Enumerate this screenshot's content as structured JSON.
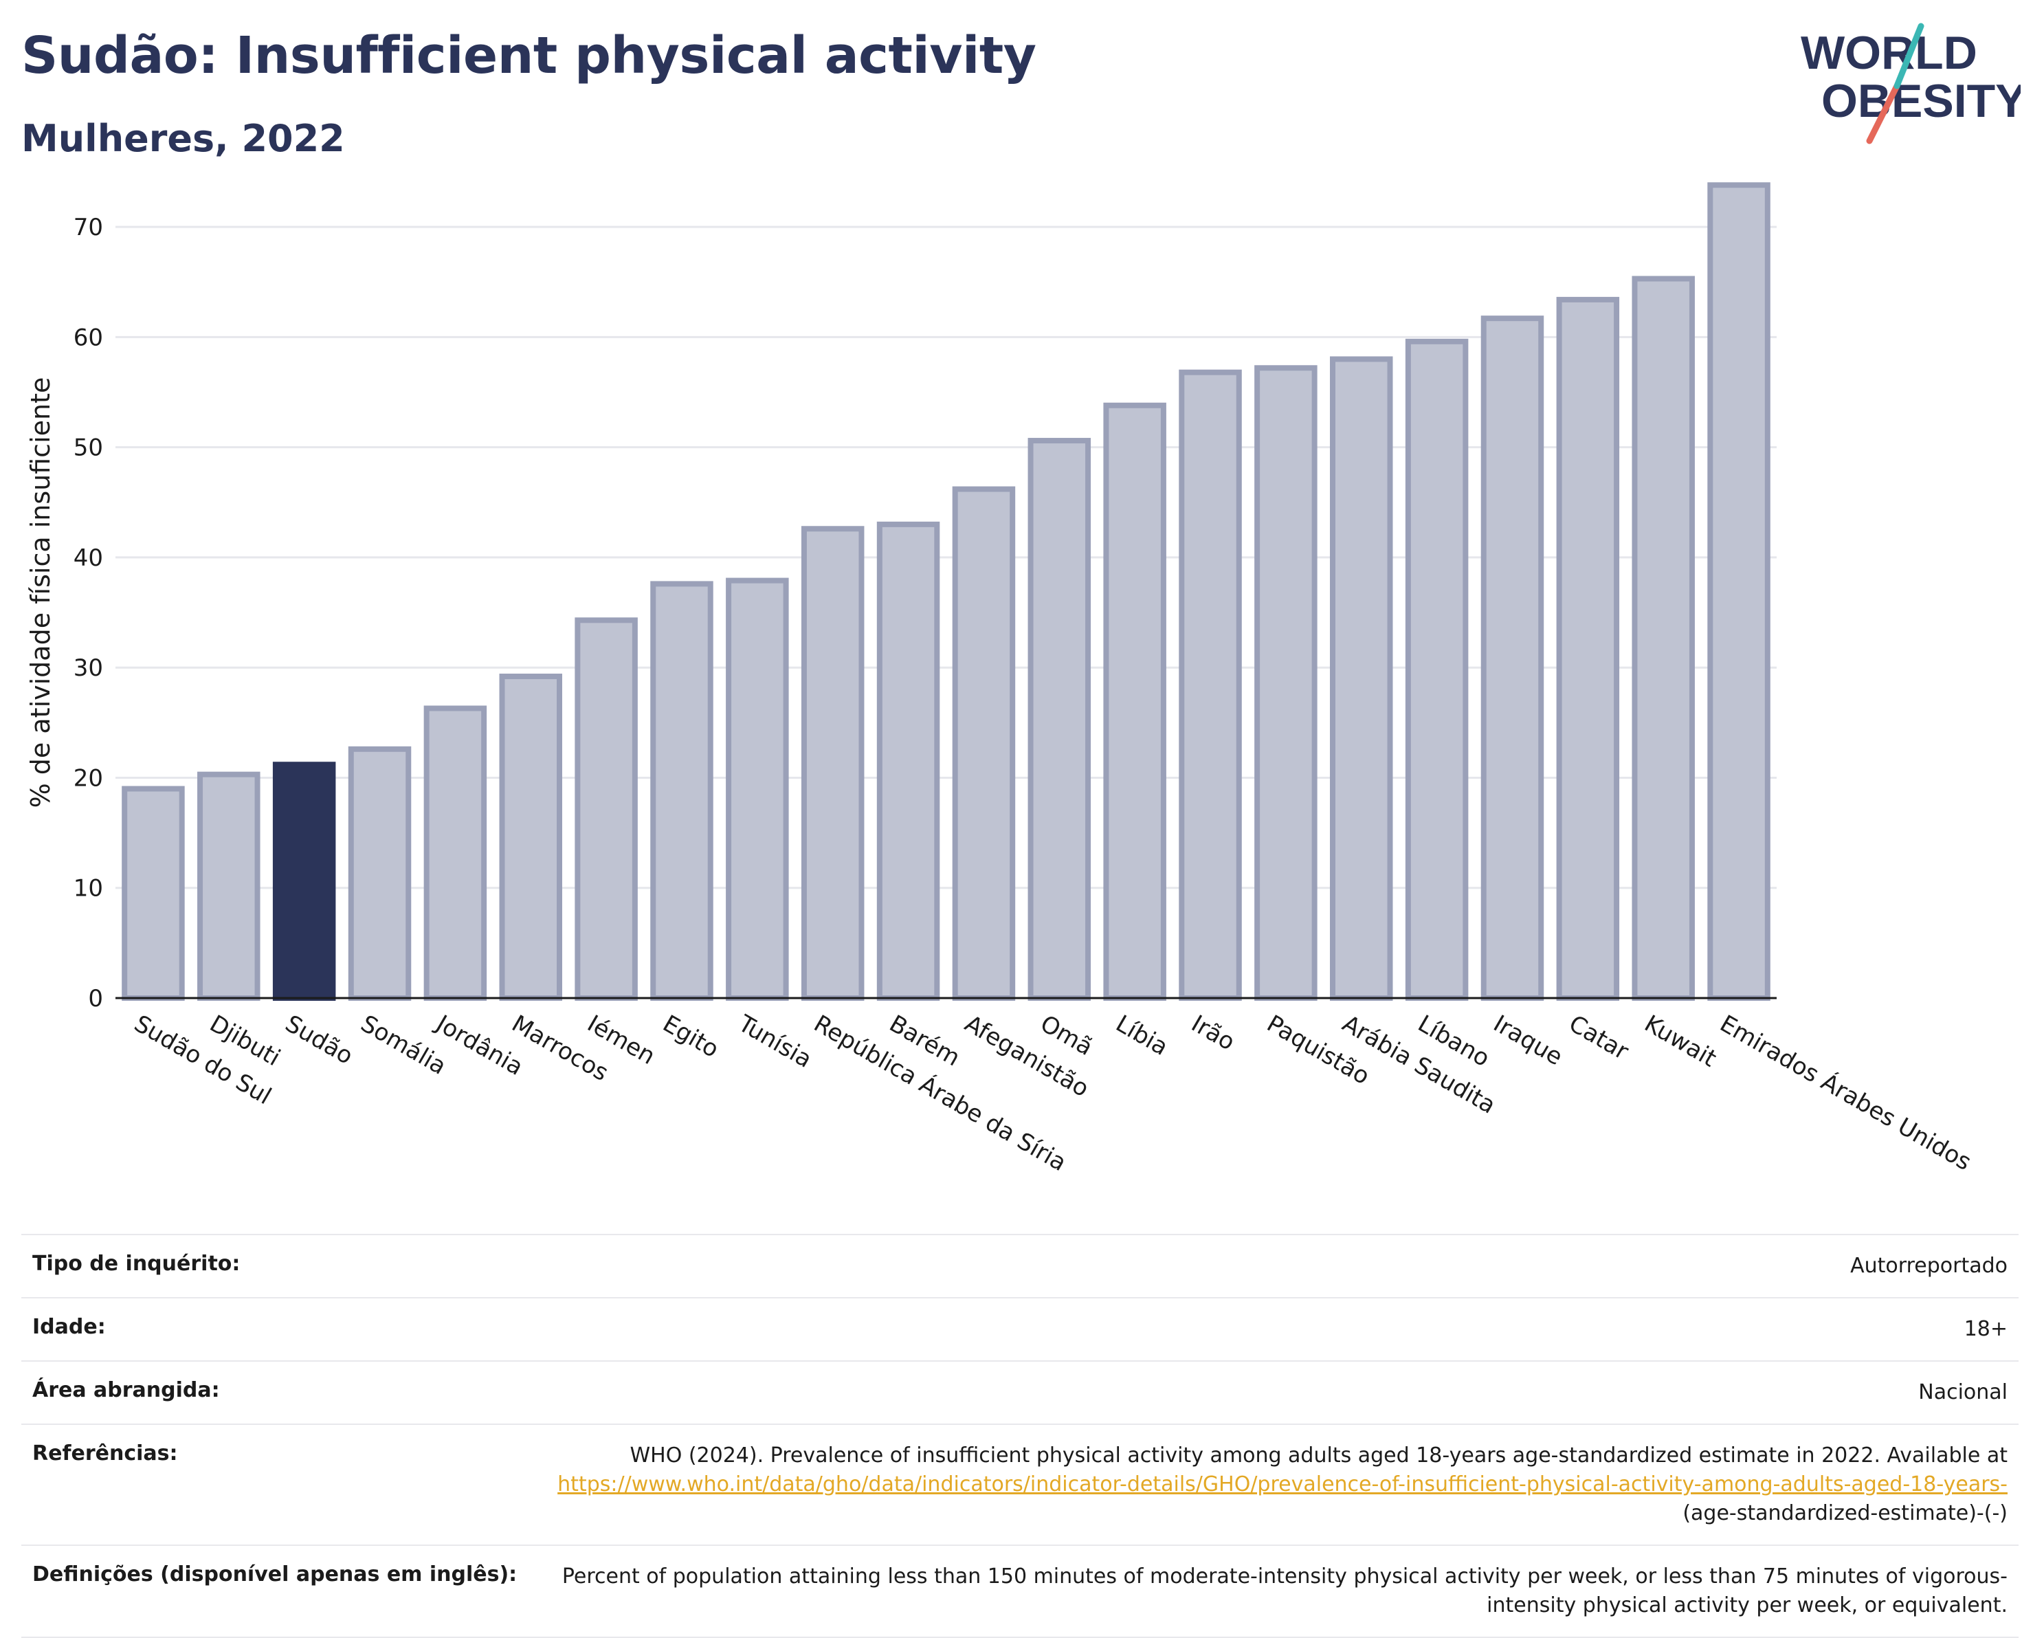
{
  "header": {
    "title": "Sudão: Insufficient physical activity",
    "subtitle": "Mulheres, 2022"
  },
  "logo": {
    "line1": "WORLD",
    "line2": "OBESITY",
    "colors": {
      "navy": "#2b3459",
      "teal": "#3bb7b4",
      "coral": "#e5685a"
    }
  },
  "colors": {
    "bar_default": "#bfc3d2",
    "bar_outline": "#9aa0b8",
    "bar_highlight": "#2b3459",
    "grid": "#e6e7ec",
    "axis": "#1b1b1b"
  },
  "chart_data": {
    "type": "bar",
    "title": "Sudão: Insufficient physical activity",
    "subtitle": "Mulheres, 2022",
    "xlabel": "",
    "ylabel": "% de atividade física insuficiente",
    "ylim": [
      0,
      75
    ],
    "yticks": [
      0,
      10,
      20,
      30,
      40,
      50,
      60,
      70
    ],
    "grid": true,
    "highlight": "Sudão",
    "categories": [
      "Sudão do Sul",
      "Djibuti",
      "Sudão",
      "Somália",
      "Jordânia",
      "Marrocos",
      "Iémen",
      "Egito",
      "Tunísia",
      "República Árabe da Síria",
      "Barém",
      "Afeganistão",
      "Omã",
      "Líbia",
      "Irão",
      "Paquistão",
      "Arábia Saudita",
      "Líbano",
      "Iraque",
      "Catar",
      "Kuwait",
      "Emirados Árabes Unidos"
    ],
    "values": [
      19.0,
      20.3,
      21.2,
      22.6,
      26.3,
      29.2,
      34.3,
      37.6,
      37.9,
      42.6,
      43.0,
      46.2,
      50.6,
      53.8,
      56.8,
      57.2,
      58.0,
      59.6,
      61.7,
      63.4,
      65.3,
      73.8
    ]
  },
  "meta": {
    "rows": [
      {
        "key": "Tipo de inquérito:",
        "value": "Autorreportado"
      },
      {
        "key": "Idade:",
        "value": "18+"
      },
      {
        "key": "Área abrangida:",
        "value": "Nacional"
      }
    ],
    "references": {
      "key": "Referências:",
      "text": "WHO (2024). Prevalence of insufficient physical activity among adults aged 18-years age-standardized estimate in 2022. Available at",
      "link": "https://www.who.int/data/gho/data/indicators/indicator-details/GHO/prevalence-of-insufficient-physical-activity-among-adults-aged-18-years-",
      "suffix": "(age-standardized-estimate)-(-)"
    },
    "definitions": {
      "key": "Definições (disponível apenas em inglês):",
      "text": "Percent of population attaining less than 150 minutes of moderate-intensity physical activity per week, or less than 75 minutes of vigorous-intensity physical activity per week, or equivalent."
    }
  }
}
